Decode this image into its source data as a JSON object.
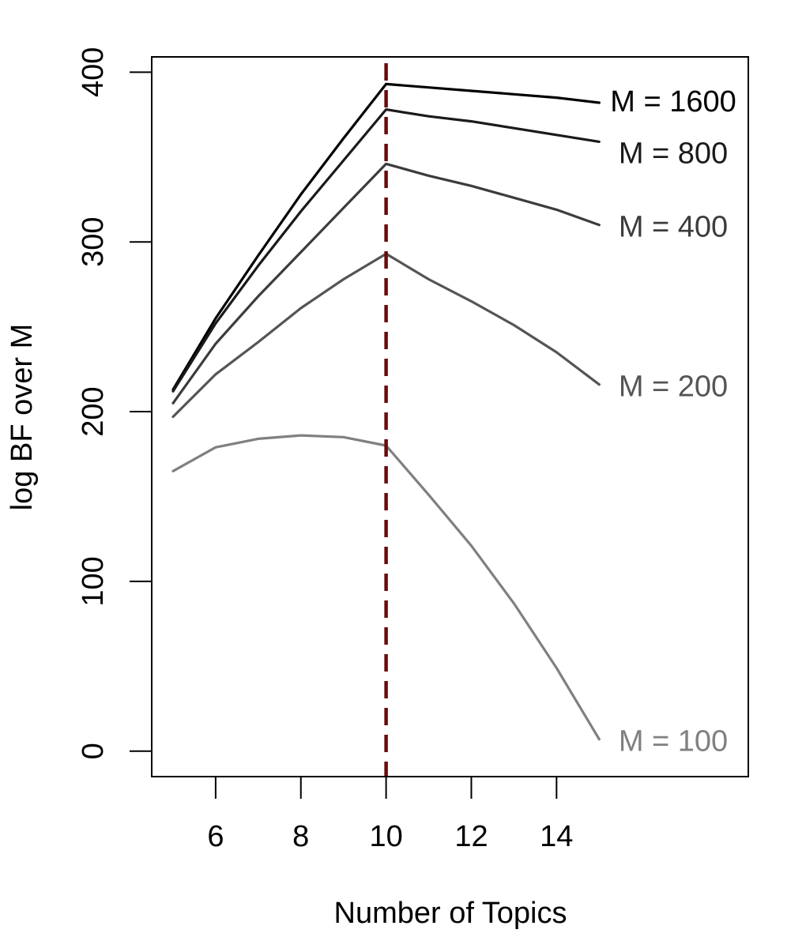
{
  "chart_data": {
    "type": "line",
    "title": "",
    "xlabel": "Number of Topics",
    "ylabel": "log BF over M",
    "xlim": [
      4.5,
      18.5
    ],
    "ylim": [
      -15,
      409
    ],
    "x_ticks": [
      6,
      8,
      10,
      12,
      14
    ],
    "y_ticks": [
      0,
      100,
      200,
      300,
      400
    ],
    "x_tick_labels": [
      "6",
      "8",
      "10",
      "12",
      "14"
    ],
    "y_tick_labels": [
      "0",
      "100",
      "200",
      "300",
      "400"
    ],
    "x": [
      5,
      6,
      7,
      8,
      9,
      10,
      11,
      12,
      13,
      14,
      15
    ],
    "grid": false,
    "legend": "none",
    "reference_line": {
      "x": 10,
      "color": "#6b0a0a",
      "style": "dashed"
    },
    "series": [
      {
        "name": "M = 1600",
        "color": "#000000",
        "values": [
          213,
          255,
          292,
          328,
          361,
          393,
          391,
          389,
          387,
          385,
          382
        ]
      },
      {
        "name": "M = 800",
        "color": "#1a1a1a",
        "values": [
          212,
          252,
          286,
          318,
          348,
          378,
          374,
          371,
          367,
          363,
          359
        ]
      },
      {
        "name": "M = 400",
        "color": "#3c3c3c",
        "values": [
          205,
          240,
          268,
          294,
          320,
          346,
          339,
          333,
          326,
          319,
          310
        ]
      },
      {
        "name": "M = 200",
        "color": "#555555",
        "values": [
          197,
          222,
          241,
          261,
          278,
          293,
          278,
          265,
          251,
          235,
          216
        ]
      },
      {
        "name": "M = 100",
        "color": "#808080",
        "values": [
          165,
          179,
          184,
          186,
          185,
          180,
          151,
          121,
          87,
          49,
          7
        ]
      }
    ]
  }
}
